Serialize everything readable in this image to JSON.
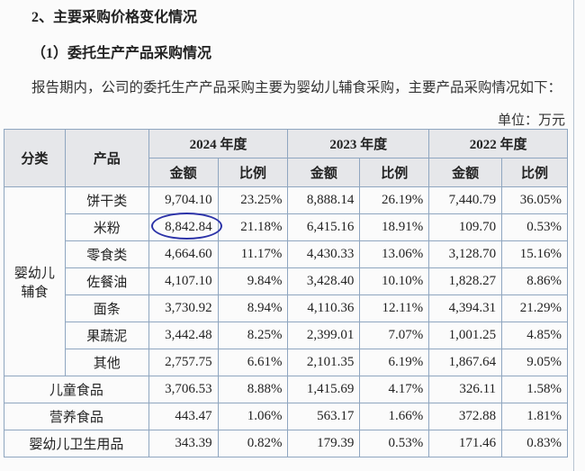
{
  "heading": "2、主要采购价格变化情况",
  "subheading": "（1）委托生产产品采购情况",
  "paragraph": "报告期内，公司的委托生产产品采购主要为婴幼儿辅食采购，主要产品采购情况如下：",
  "unit": "单位：万元",
  "table": {
    "header": {
      "category": "分类",
      "product": "产品",
      "years": [
        "2024 年度",
        "2023 年度",
        "2022 年度"
      ],
      "amount": "金额",
      "ratio": "比例"
    },
    "group_label": "婴幼儿\n辅食",
    "group_rows": [
      {
        "product": "饼干类",
        "values": [
          "9,704.10",
          "23.25%",
          "8,888.14",
          "26.19%",
          "7,440.79",
          "36.05%"
        ]
      },
      {
        "product": "米粉",
        "values": [
          "8,842.84",
          "21.18%",
          "6,415.16",
          "18.91%",
          "109.70",
          "0.53%"
        ]
      },
      {
        "product": "零食类",
        "values": [
          "4,664.60",
          "11.17%",
          "4,430.33",
          "13.06%",
          "3,128.70",
          "15.16%"
        ]
      },
      {
        "product": "佐餐油",
        "values": [
          "4,107.10",
          "9.84%",
          "3,428.40",
          "10.10%",
          "1,828.27",
          "8.86%"
        ]
      },
      {
        "product": "面条",
        "values": [
          "3,730.92",
          "8.94%",
          "4,110.36",
          "12.11%",
          "4,394.31",
          "21.29%"
        ]
      },
      {
        "product": "果蔬泥",
        "values": [
          "3,442.48",
          "8.25%",
          "2,399.01",
          "7.07%",
          "1,001.25",
          "4.85%"
        ]
      },
      {
        "product": "其他",
        "values": [
          "2,757.75",
          "6.61%",
          "2,101.35",
          "6.19%",
          "1,867.64",
          "9.05%"
        ]
      }
    ],
    "other_rows": [
      {
        "product": "儿童食品",
        "values": [
          "3,706.53",
          "8.88%",
          "1,415.69",
          "4.17%",
          "326.11",
          "1.58%"
        ]
      },
      {
        "product": "营养食品",
        "values": [
          "443.47",
          "1.06%",
          "563.17",
          "1.66%",
          "372.88",
          "1.81%"
        ]
      },
      {
        "product": "婴幼儿卫生用品",
        "values": [
          "343.39",
          "0.82%",
          "179.39",
          "0.53%",
          "171.46",
          "0.83%"
        ]
      }
    ]
  },
  "annotation_color": "#2c33a8"
}
